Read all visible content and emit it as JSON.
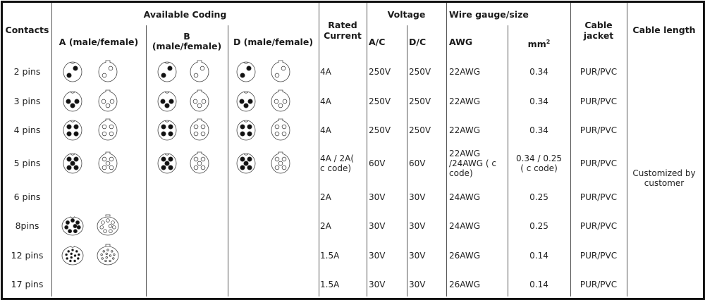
{
  "header": {
    "contacts": "Contacts",
    "available_coding": "Available Coding",
    "coding_a": "A (male/female)",
    "coding_b": "B\n(male/female)",
    "coding_d": "D (male/female)",
    "rated_current": "Rated\nCurrent",
    "voltage": "Voltage",
    "ac": "A/C",
    "dc": "D/C",
    "wire_gauge": "Wire gauge/size",
    "awg": "AWG",
    "mm": "mm",
    "mm_sup": "2",
    "cable_jacket": "Cable\njacket",
    "cable_length": "Cable length"
  },
  "cable_length_value": "Customized by\ncustomer",
  "rows": [
    {
      "contacts": "2 pins",
      "a": 2,
      "b": 2,
      "d": 2,
      "rated": "4A",
      "ac": "250V",
      "dc": "250V",
      "awg": "22AWG",
      "mm2": "0.34",
      "jacket": "PUR/PVC"
    },
    {
      "contacts": "3 pins",
      "a": 3,
      "b": 3,
      "d": 3,
      "rated": "4A",
      "ac": "250V",
      "dc": "250V",
      "awg": "22AWG",
      "mm2": "0.34",
      "jacket": "PUR/PVC"
    },
    {
      "contacts": "4 pins",
      "a": 4,
      "b": 4,
      "d": 4,
      "rated": "4A",
      "ac": "250V",
      "dc": "250V",
      "awg": "22AWG",
      "mm2": "0.34",
      "jacket": "PUR/PVC"
    },
    {
      "contacts": "5 pins",
      "a": 5,
      "b": 5,
      "d": 5,
      "rated": "4A / 2A(\nc code)",
      "ac": "60V",
      "dc": "60V",
      "awg": "22AWG\n/24AWG ( c\ncode)",
      "mm2": "0.34 / 0.25\n( c code)",
      "jacket": "PUR/PVC"
    },
    {
      "contacts": "6 pins",
      "a": null,
      "b": null,
      "d": null,
      "rated": "2A",
      "ac": "30V",
      "dc": "30V",
      "awg": "24AWG",
      "mm2": "0.25",
      "jacket": "PUR/PVC"
    },
    {
      "contacts": "8pins",
      "a": 8,
      "b": null,
      "d": null,
      "rated": "2A",
      "ac": "30V",
      "dc": "30V",
      "awg": "24AWG",
      "mm2": "0.25",
      "jacket": "PUR/PVC"
    },
    {
      "contacts": "12 pins",
      "a": 12,
      "b": null,
      "d": null,
      "rated": "1.5A",
      "ac": "30V",
      "dc": "30V",
      "awg": "26AWG",
      "mm2": "0.14",
      "jacket": "PUR/PVC"
    },
    {
      "contacts": "17 pins",
      "a": null,
      "b": null,
      "d": null,
      "rated": "1.5A",
      "ac": "30V",
      "dc": "30V",
      "awg": "26AWG",
      "mm2": "0.14",
      "jacket": "PUR/PVC"
    }
  ]
}
